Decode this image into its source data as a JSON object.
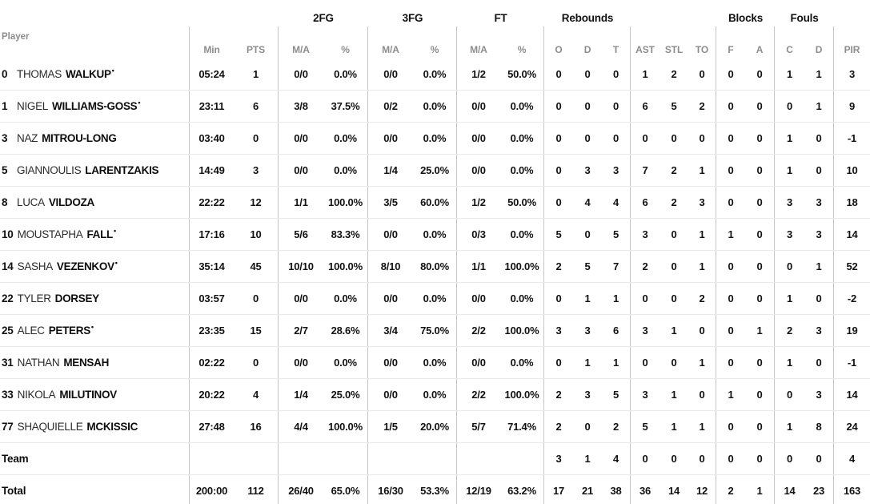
{
  "table": {
    "starter_mark": "•",
    "header": {
      "player_label": "Player",
      "group_labels": [
        "",
        "",
        "2FG",
        "3FG",
        "FT",
        "Rebounds",
        "",
        "Blocks",
        "Fouls",
        ""
      ],
      "columns": [
        "Min",
        "PTS",
        "M/A",
        "%",
        "M/A",
        "%",
        "M/A",
        "%",
        "O",
        "D",
        "T",
        "AST",
        "STL",
        "TO",
        "F",
        "A",
        "C",
        "D",
        "PIR"
      ]
    },
    "column_keys": [
      "min",
      "pts",
      "fg2-ma",
      "fg2-pct",
      "fg3-ma",
      "fg3-pct",
      "ft-ma",
      "ft-pct",
      "reb-o",
      "reb-d",
      "reb-t",
      "ast",
      "stl",
      "to",
      "blk-f",
      "blk-a",
      "foul-c",
      "foul-d",
      "pir"
    ],
    "rows": [
      {
        "number": "0",
        "first": "THOMAS",
        "last": "WALKUP",
        "starter": true,
        "stats": [
          "05:24",
          "1",
          "0/0",
          "0.0%",
          "0/0",
          "0.0%",
          "1/2",
          "50.0%",
          "0",
          "0",
          "0",
          "1",
          "2",
          "0",
          "0",
          "0",
          "1",
          "1",
          "3"
        ]
      },
      {
        "number": "1",
        "first": "NIGEL",
        "last": "WILLIAMS-GOSS",
        "starter": true,
        "stats": [
          "23:11",
          "6",
          "3/8",
          "37.5%",
          "0/2",
          "0.0%",
          "0/0",
          "0.0%",
          "0",
          "0",
          "0",
          "6",
          "5",
          "2",
          "0",
          "0",
          "0",
          "1",
          "9"
        ]
      },
      {
        "number": "3",
        "first": "NAZ",
        "last": "MITROU-LONG",
        "starter": false,
        "stats": [
          "03:40",
          "0",
          "0/0",
          "0.0%",
          "0/0",
          "0.0%",
          "0/0",
          "0.0%",
          "0",
          "0",
          "0",
          "0",
          "0",
          "0",
          "0",
          "0",
          "1",
          "0",
          "-1"
        ]
      },
      {
        "number": "5",
        "first": "GIANNOULIS",
        "last": "LARENTZAKIS",
        "starter": false,
        "stats": [
          "14:49",
          "3",
          "0/0",
          "0.0%",
          "1/4",
          "25.0%",
          "0/0",
          "0.0%",
          "0",
          "3",
          "3",
          "7",
          "2",
          "1",
          "0",
          "0",
          "1",
          "0",
          "10"
        ]
      },
      {
        "number": "8",
        "first": "LUCA",
        "last": "VILDOZA",
        "starter": false,
        "stats": [
          "22:22",
          "12",
          "1/1",
          "100.0%",
          "3/5",
          "60.0%",
          "1/2",
          "50.0%",
          "0",
          "4",
          "4",
          "6",
          "2",
          "3",
          "0",
          "0",
          "3",
          "3",
          "18"
        ]
      },
      {
        "number": "10",
        "first": "MOUSTAPHA",
        "last": "FALL",
        "starter": true,
        "stats": [
          "17:16",
          "10",
          "5/6",
          "83.3%",
          "0/0",
          "0.0%",
          "0/3",
          "0.0%",
          "5",
          "0",
          "5",
          "3",
          "0",
          "1",
          "1",
          "0",
          "3",
          "3",
          "14"
        ]
      },
      {
        "number": "14",
        "first": "SASHA",
        "last": "VEZENKOV",
        "starter": true,
        "stats": [
          "35:14",
          "45",
          "10/10",
          "100.0%",
          "8/10",
          "80.0%",
          "1/1",
          "100.0%",
          "2",
          "5",
          "7",
          "2",
          "0",
          "1",
          "0",
          "0",
          "0",
          "1",
          "52"
        ]
      },
      {
        "number": "22",
        "first": "TYLER",
        "last": "DORSEY",
        "starter": false,
        "stats": [
          "03:57",
          "0",
          "0/0",
          "0.0%",
          "0/0",
          "0.0%",
          "0/0",
          "0.0%",
          "0",
          "1",
          "1",
          "0",
          "0",
          "2",
          "0",
          "0",
          "1",
          "0",
          "-2"
        ]
      },
      {
        "number": "25",
        "first": "ALEC",
        "last": "PETERS",
        "starter": true,
        "stats": [
          "23:35",
          "15",
          "2/7",
          "28.6%",
          "3/4",
          "75.0%",
          "2/2",
          "100.0%",
          "3",
          "3",
          "6",
          "3",
          "1",
          "0",
          "0",
          "1",
          "2",
          "3",
          "19"
        ]
      },
      {
        "number": "31",
        "first": "NATHAN",
        "last": "MENSAH",
        "starter": false,
        "stats": [
          "02:22",
          "0",
          "0/0",
          "0.0%",
          "0/0",
          "0.0%",
          "0/0",
          "0.0%",
          "0",
          "1",
          "1",
          "0",
          "0",
          "1",
          "0",
          "0",
          "1",
          "0",
          "-1"
        ]
      },
      {
        "number": "33",
        "first": "NIKOLA",
        "last": "MILUTINOV",
        "starter": false,
        "stats": [
          "20:22",
          "4",
          "1/4",
          "25.0%",
          "0/0",
          "0.0%",
          "2/2",
          "100.0%",
          "2",
          "3",
          "5",
          "3",
          "1",
          "0",
          "1",
          "0",
          "0",
          "3",
          "14"
        ]
      },
      {
        "number": "77",
        "first": "SHAQUIELLE",
        "last": "MCKISSIC",
        "starter": false,
        "stats": [
          "27:48",
          "16",
          "4/4",
          "100.0%",
          "1/5",
          "20.0%",
          "5/7",
          "71.4%",
          "2",
          "0",
          "2",
          "5",
          "1",
          "1",
          "0",
          "0",
          "1",
          "8",
          "24"
        ]
      },
      {
        "label": "Team",
        "stats": [
          "",
          "",
          "",
          "",
          "",
          "",
          "",
          "",
          "3",
          "1",
          "4",
          "0",
          "0",
          "0",
          "0",
          "0",
          "0",
          "0",
          "4"
        ]
      },
      {
        "label": "Total",
        "stats": [
          "200:00",
          "112",
          "26/40",
          "65.0%",
          "16/30",
          "53.3%",
          "12/19",
          "63.2%",
          "17",
          "21",
          "38",
          "36",
          "14",
          "12",
          "2",
          "1",
          "14",
          "23",
          "163"
        ]
      }
    ]
  }
}
